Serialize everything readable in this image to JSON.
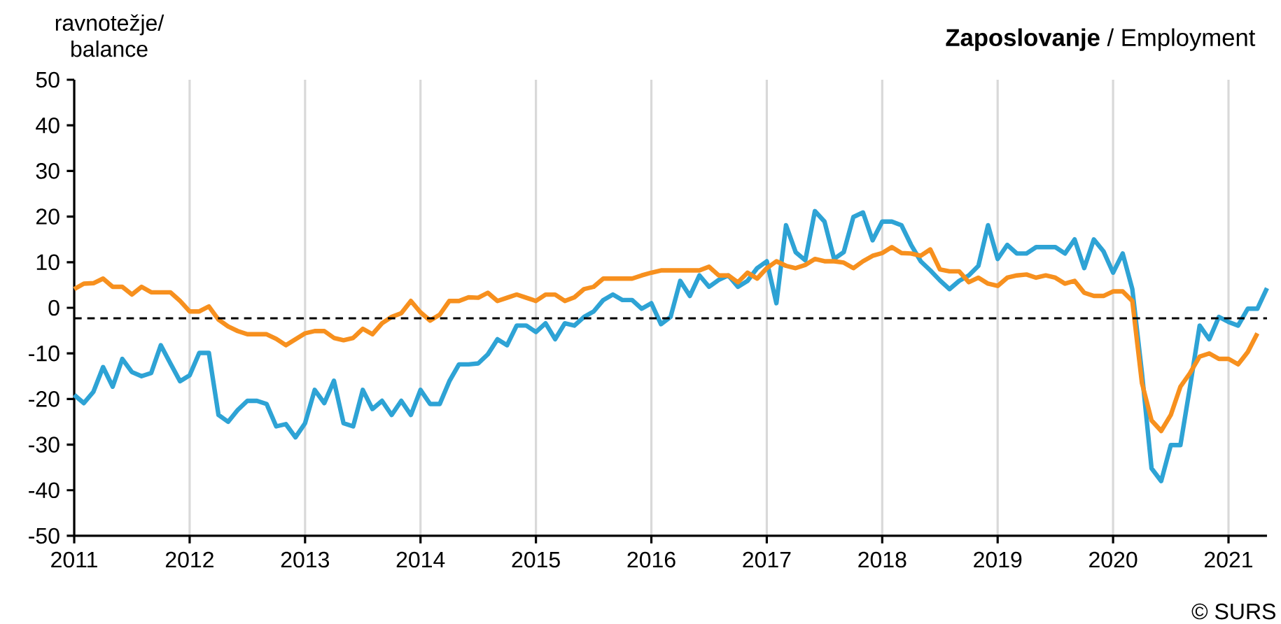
{
  "chart_data": {
    "type": "line",
    "title": "**Zaposlovanje** / Employment",
    "ylabel": "ravnotežje/ balance",
    "annotations": [
      "© SURS"
    ],
    "x": [
      "2011-01",
      "2011-02",
      "2011-03",
      "2011-04",
      "2011-05",
      "2011-06",
      "2011-07",
      "2011-08",
      "2011-09",
      "2011-10",
      "2011-11",
      "2011-12",
      "2012-01",
      "2012-02",
      "2012-03",
      "2012-04",
      "2012-05",
      "2012-06",
      "2012-07",
      "2012-08",
      "2012-09",
      "2012-10",
      "2012-11",
      "2012-12",
      "2013-01",
      "2013-02",
      "2013-03",
      "2013-04",
      "2013-05",
      "2013-06",
      "2013-07",
      "2013-08",
      "2013-09",
      "2013-10",
      "2013-11",
      "2013-12",
      "2014-01",
      "2014-02",
      "2014-03",
      "2014-04",
      "2014-05",
      "2014-06",
      "2014-07",
      "2014-08",
      "2014-09",
      "2014-10",
      "2014-11",
      "2014-12",
      "2015-01",
      "2015-02",
      "2015-03",
      "2015-04",
      "2015-05",
      "2015-06",
      "2015-07",
      "2015-08",
      "2015-09",
      "2015-10",
      "2015-11",
      "2015-12",
      "2016-01",
      "2016-02",
      "2016-03",
      "2016-04",
      "2016-05",
      "2016-06",
      "2016-07",
      "2016-08",
      "2016-09",
      "2016-10",
      "2016-11",
      "2016-12",
      "2017-01",
      "2017-02",
      "2017-03",
      "2017-04",
      "2017-05",
      "2017-06",
      "2017-07",
      "2017-08",
      "2017-09",
      "2017-10",
      "2017-11",
      "2017-12",
      "2018-01",
      "2018-02",
      "2018-03",
      "2018-04",
      "2018-05",
      "2018-06",
      "2018-07",
      "2018-08",
      "2018-09",
      "2018-10",
      "2018-11",
      "2018-12",
      "2019-01",
      "2019-02",
      "2019-03",
      "2019-04",
      "2019-05",
      "2019-06",
      "2019-07",
      "2019-08",
      "2019-09",
      "2019-10",
      "2019-11",
      "2019-12",
      "2020-01",
      "2020-02",
      "2020-03",
      "2020-04",
      "2020-05",
      "2020-06",
      "2020-07",
      "2020-08",
      "2020-09",
      "2020-10",
      "2020-11",
      "2020-12",
      "2021-01",
      "2021-02",
      "2021-03",
      "2021-04",
      "2021-05"
    ],
    "series": [
      {
        "color": "#2ea3d5",
        "values": [
          -19.1,
          -20.9,
          -18.4,
          -13,
          -17.3,
          -11.2,
          -14.1,
          -15,
          -14.3,
          -8.2,
          -12.2,
          -16.1,
          -14.8,
          -9.9,
          -9.9,
          -23.5,
          -25,
          -22.4,
          -20.4,
          -20.4,
          -21.1,
          -26,
          -25.5,
          -28.4,
          -25.3,
          -18,
          -20.9,
          -16,
          -25.3,
          -26,
          -18,
          -22.2,
          -20.4,
          -23.5,
          -20.4,
          -23.5,
          -18,
          -21.1,
          -21.1,
          -16.1,
          -12.4,
          -12.4,
          -12.2,
          -10.2,
          -6.9,
          -8.2,
          -3.9,
          -3.9,
          -5.3,
          -3.4,
          -6.9,
          -3.4,
          -3.9,
          -2,
          -0.8,
          1.7,
          2.9,
          1.7,
          1.7,
          -0.2,
          1,
          -3.6,
          -2,
          5.9,
          2.6,
          7.1,
          4.6,
          6.1,
          7.1,
          4.6,
          5.9,
          8.7,
          10.2,
          1,
          18.1,
          12.2,
          10.4,
          21.2,
          18.9,
          10.7,
          12.2,
          19.9,
          20.9,
          14.8,
          18.9,
          18.9,
          18.1,
          13.8,
          10.2,
          8.2,
          6,
          4.1,
          5.9,
          7.1,
          9.2,
          18.1,
          10.7,
          13.8,
          11.9,
          11.9,
          13.3,
          13.3,
          13.3,
          11.9,
          15,
          8.7,
          15,
          12.4,
          7.7,
          11.9,
          4.1,
          -14.3,
          -35.2,
          -38,
          -30.1,
          -30.1,
          -17.3,
          -3.9,
          -6.9,
          -2,
          -3.1,
          -3.9,
          -0.2,
          -0.2,
          4.3
        ]
      },
      {
        "color": "#f7901e",
        "values": [
          4.1,
          5.3,
          5.4,
          6.4,
          4.6,
          4.6,
          2.9,
          4.6,
          3.4,
          3.4,
          3.4,
          1.5,
          -0.8,
          -0.8,
          0.3,
          -2.6,
          -4.1,
          -5.1,
          -5.8,
          -5.8,
          -5.8,
          -6.8,
          -8.2,
          -6.9,
          -5.6,
          -5.1,
          -5.1,
          -6.6,
          -7.1,
          -6.6,
          -4.6,
          -5.8,
          -3.4,
          -2,
          -1.2,
          1.5,
          -1,
          -2.8,
          -1.5,
          1.5,
          1.5,
          2.3,
          2.2,
          3.3,
          1.5,
          2.2,
          2.9,
          2.2,
          1.5,
          2.9,
          2.9,
          1.5,
          2.3,
          4.1,
          4.6,
          6.4,
          6.4,
          6.4,
          6.4,
          7.1,
          7.7,
          8.2,
          8.2,
          8.2,
          8.2,
          8.2,
          9,
          7.1,
          7.1,
          5.6,
          7.7,
          6.4,
          8.7,
          10.2,
          9.2,
          8.7,
          9.4,
          10.7,
          10.2,
          10.2,
          9.9,
          8.7,
          10.2,
          11.4,
          12,
          13.3,
          12,
          11.9,
          11.4,
          12.8,
          8.4,
          8,
          8,
          5.6,
          6.6,
          5.3,
          4.8,
          6.6,
          7.1,
          7.3,
          6.6,
          7.1,
          6.6,
          5.3,
          5.9,
          3.3,
          2.6,
          2.6,
          3.6,
          3.6,
          1.5,
          -16.5,
          -24.7,
          -27,
          -23.5,
          -17.3,
          -14.3,
          -10.7,
          -10,
          -11.2,
          -11.2,
          -12.4,
          -9.7,
          -5.6,
          null
        ]
      }
    ],
    "xlim": [
      "2011-01",
      "2021-05"
    ],
    "xticks": [
      "2011",
      "2012",
      "2013",
      "2014",
      "2015",
      "2016",
      "2017",
      "2018",
      "2019",
      "2020",
      "2021"
    ],
    "ylim": [
      -50,
      50
    ],
    "yticks": [
      -50,
      -40,
      -30,
      -20,
      -10,
      0,
      10,
      20,
      30,
      40,
      50
    ],
    "ref_lines": [
      {
        "axis": "y",
        "value": -2.3,
        "color": "#000000",
        "line_style": "dashed"
      }
    ],
    "grid": "x",
    "marker": "none",
    "line_style": "solid"
  }
}
